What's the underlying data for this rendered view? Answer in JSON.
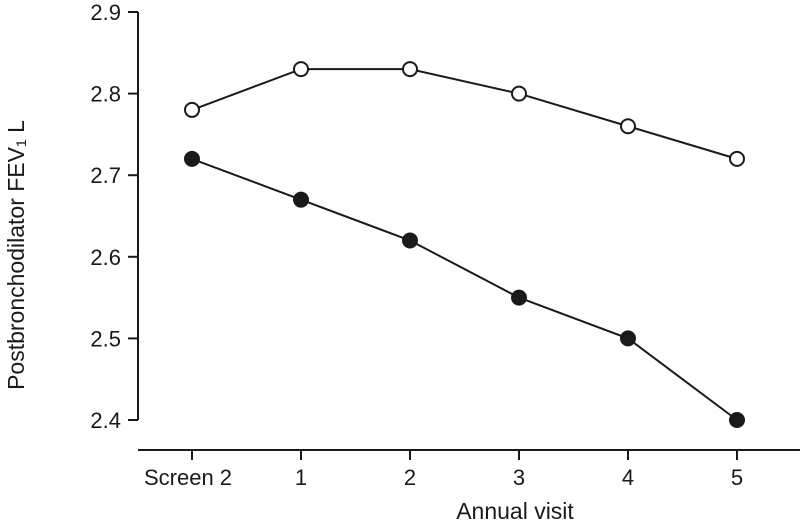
{
  "chart_data": {
    "type": "line",
    "xlabel": "Annual visit",
    "ylabel": "Postbronchodilator  FEV₁ L",
    "categories": [
      "Screen 2",
      "1",
      "2",
      "3",
      "4",
      "5"
    ],
    "ylim": [
      2.4,
      2.9
    ],
    "yticks": [
      2.4,
      2.5,
      2.6,
      2.7,
      2.8,
      2.9
    ],
    "grid": false,
    "series": [
      {
        "marker": "open-circle",
        "marker_fill": "#ffffff",
        "values": [
          2.78,
          2.83,
          2.83,
          2.8,
          2.76,
          2.72
        ]
      },
      {
        "marker": "filled-circle",
        "marker_fill": "#1a1a1a",
        "values": [
          2.72,
          2.67,
          2.62,
          2.55,
          2.5,
          2.4
        ]
      }
    ]
  }
}
